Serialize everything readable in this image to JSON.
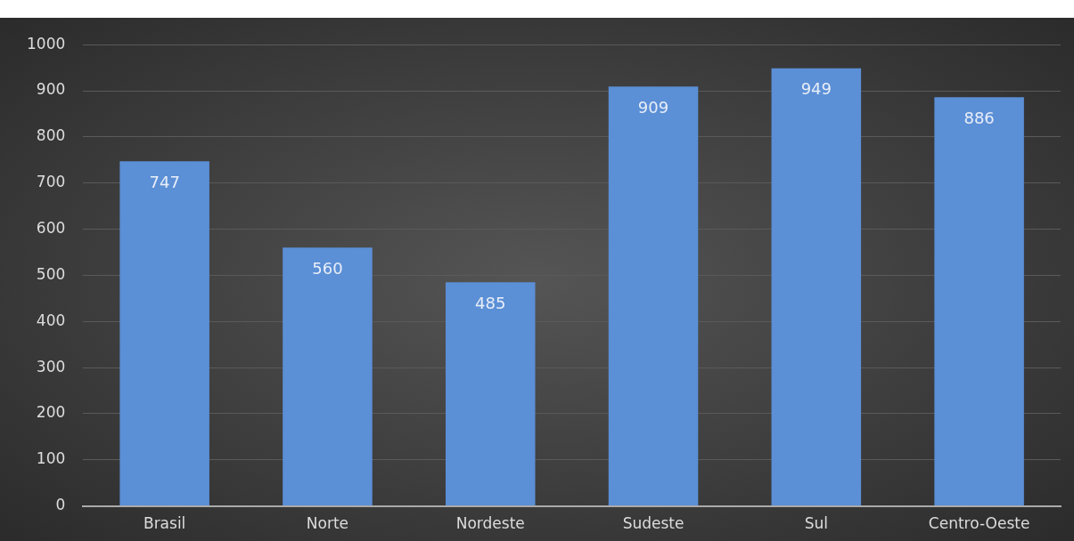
{
  "chart_data": {
    "type": "bar",
    "categories": [
      "Brasil",
      "Norte",
      "Nordeste",
      "Sudeste",
      "Sul",
      "Centro-Oeste"
    ],
    "values": [
      747,
      560,
      485,
      909,
      949,
      886
    ],
    "color": "#5b8fd6",
    "ylim": [
      0,
      1000
    ],
    "yticks": [
      0,
      100,
      200,
      300,
      400,
      500,
      600,
      700,
      800,
      900,
      1000
    ],
    "grid": "y",
    "data_labels": true,
    "legend": false
  }
}
